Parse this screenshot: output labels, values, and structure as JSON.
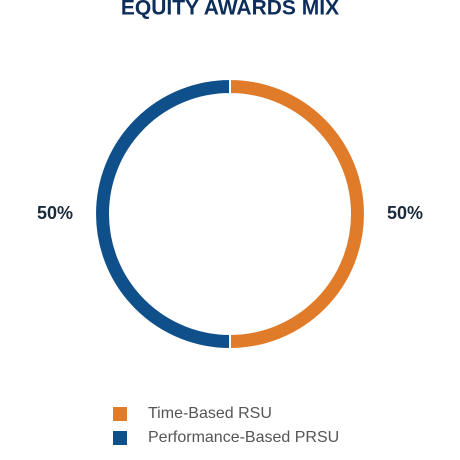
{
  "chart_data": {
    "type": "pie",
    "title": "EQUITY AWARDS MIX",
    "categories": [
      "Time-Based RSU",
      "Performance-Based PRSU"
    ],
    "values": [
      50,
      50
    ],
    "value_labels": [
      "50%",
      "50%"
    ],
    "colors": [
      "#e07b2a",
      "#0f4f8a"
    ],
    "donut": true
  }
}
